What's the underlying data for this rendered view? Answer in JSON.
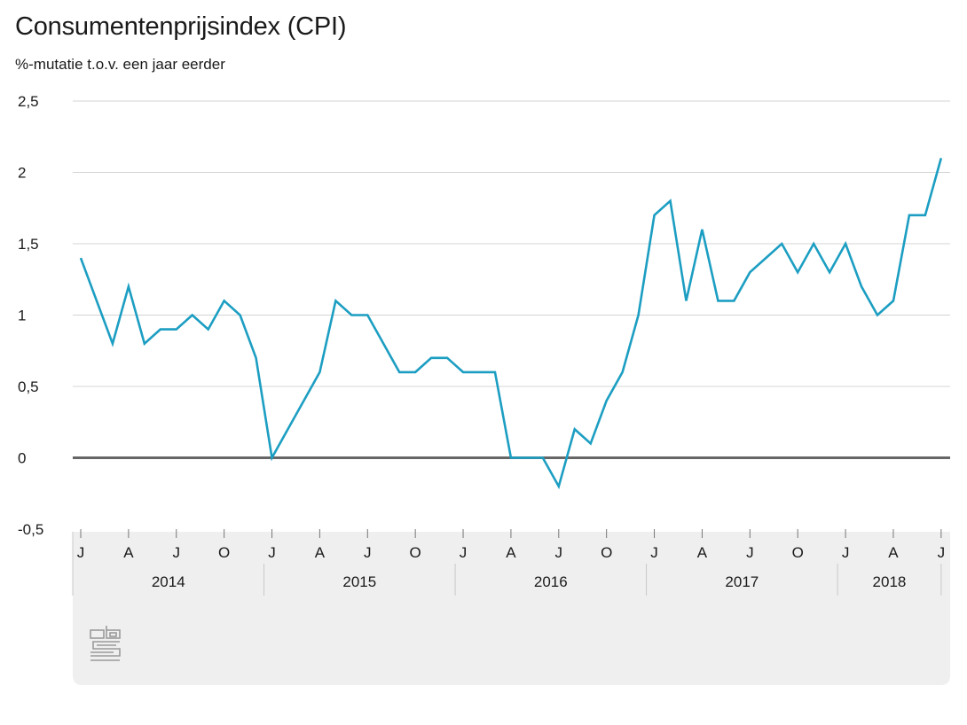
{
  "chart_data": {
    "type": "line",
    "title": "Consumentenprijsindex (CPI)",
    "subtitle": "%-mutatie t.o.v. een jaar eerder",
    "xlabel": "",
    "ylabel": "",
    "ylim": [
      -0.5,
      2.5
    ],
    "y_ticks": [
      "2,5",
      "2",
      "1,5",
      "1",
      "0,5",
      "0",
      "-0,5"
    ],
    "y_tick_values": [
      2.5,
      2,
      1.5,
      1,
      0.5,
      0,
      -0.5
    ],
    "grid": true,
    "x_start": "2014-01",
    "x_end": "2018-07",
    "month_tick_labels": [
      "J",
      "A",
      "J",
      "O",
      "J",
      "A",
      "J",
      "O",
      "J",
      "A",
      "J",
      "O",
      "J",
      "A",
      "J",
      "O",
      "J",
      "A",
      "J"
    ],
    "years": [
      "2014",
      "2015",
      "2016",
      "2017",
      "2018"
    ],
    "series": [
      {
        "name": "",
        "color": "#1c9ec2",
        "x": [
          "2014-01",
          "2014-02",
          "2014-03",
          "2014-04",
          "2014-05",
          "2014-06",
          "2014-07",
          "2014-08",
          "2014-09",
          "2014-10",
          "2014-11",
          "2014-12",
          "2015-01",
          "2015-02",
          "2015-03",
          "2015-04",
          "2015-05",
          "2015-06",
          "2015-07",
          "2015-08",
          "2015-09",
          "2015-10",
          "2015-11",
          "2015-12",
          "2016-01",
          "2016-02",
          "2016-03",
          "2016-04",
          "2016-05",
          "2016-06",
          "2016-07",
          "2016-08",
          "2016-09",
          "2016-10",
          "2016-11",
          "2016-12",
          "2017-01",
          "2017-02",
          "2017-03",
          "2017-04",
          "2017-05",
          "2017-06",
          "2017-07",
          "2017-08",
          "2017-09",
          "2017-10",
          "2017-11",
          "2017-12",
          "2018-01",
          "2018-02",
          "2018-03",
          "2018-04",
          "2018-05",
          "2018-06",
          "2018-07"
        ],
        "values": [
          1.4,
          1.1,
          0.8,
          1.2,
          0.8,
          0.9,
          0.9,
          1.0,
          0.9,
          1.1,
          1.0,
          0.7,
          0.0,
          0.2,
          0.4,
          0.6,
          1.1,
          1.0,
          1.0,
          0.8,
          0.6,
          0.6,
          0.7,
          0.7,
          0.6,
          0.6,
          0.6,
          0.0,
          0.0,
          0.0,
          -0.2,
          0.2,
          0.1,
          0.4,
          0.6,
          1.0,
          1.7,
          1.8,
          1.1,
          1.6,
          1.1,
          1.1,
          1.3,
          1.4,
          1.5,
          1.3,
          1.5,
          1.3,
          1.5,
          1.2,
          1.0,
          1.1,
          1.7,
          1.7,
          2.1
        ]
      }
    ],
    "colors": {
      "line": "#1c9ec2",
      "zero_line": "#666666",
      "gridline": "#d4d4d4",
      "axis_panel": "#efefef"
    },
    "logo_icon": "cbs-logo-icon"
  }
}
